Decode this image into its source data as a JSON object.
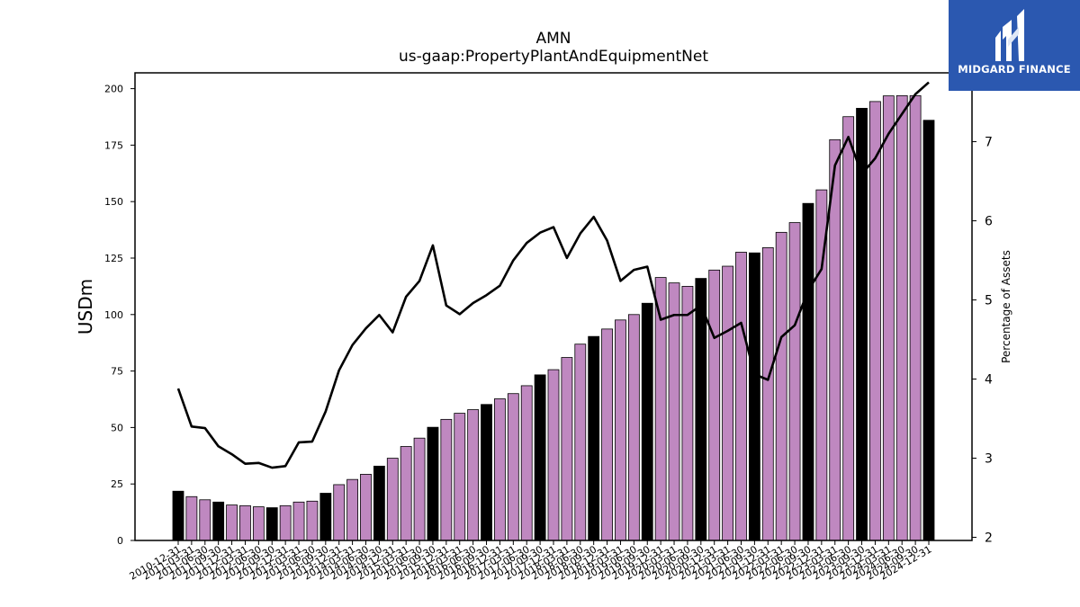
{
  "title": "AMN",
  "subtitle": "us-gaap:PropertyPlantAndEquipmentNet",
  "logo": {
    "text": "MIDGARD FINANCE"
  },
  "colors": {
    "bar_fill": "#bf88c0",
    "bar_highlight": "#000000",
    "bar_stroke": "#000000",
    "line": "#000000",
    "logo_bg": "#2b58b0"
  },
  "chart_data": {
    "type": "bar",
    "ylabel": "USDm",
    "y2label": "Percentage of Assets",
    "ylim": [
      0,
      207
    ],
    "y2lim": [
      1.96,
      7.87
    ],
    "yticks": [
      "0",
      "25",
      "50",
      "75",
      "100",
      "125",
      "150",
      "175",
      "200"
    ],
    "y2ticks": [
      "2",
      "3",
      "4",
      "5",
      "6",
      "7"
    ],
    "categories": [
      "2010-12-31",
      "2011-03-31",
      "2011-06-30",
      "2011-09-30",
      "2011-12-31",
      "2012-03-31",
      "2012-06-30",
      "2012-09-30",
      "2012-12-31",
      "2013-03-31",
      "2013-06-30",
      "2013-09-30",
      "2013-12-31",
      "2014-03-31",
      "2014-06-30",
      "2014-09-30",
      "2014-12-31",
      "2015-03-31",
      "2015-06-30",
      "2015-09-30",
      "2015-12-31",
      "2016-03-31",
      "2016-06-30",
      "2016-09-30",
      "2016-12-31",
      "2017-03-31",
      "2017-06-30",
      "2017-09-30",
      "2017-12-31",
      "2018-03-31",
      "2018-06-30",
      "2018-09-30",
      "2018-12-31",
      "2019-03-31",
      "2019-06-30",
      "2019-09-30",
      "2019-12-31",
      "2020-03-31",
      "2020-06-30",
      "2020-09-30",
      "2020-12-31",
      "2021-03-31",
      "2021-06-30",
      "2021-09-30",
      "2021-12-31",
      "2022-03-31",
      "2022-06-30",
      "2022-09-30",
      "2022-12-31",
      "2023-03-31",
      "2023-06-30",
      "2023-09-30",
      "2023-12-31",
      "2024-03-31",
      "2024-06-30",
      "2024-09-30",
      "2024-12-31"
    ],
    "xtick_labels": [
      "2010-12-31",
      "2011-03-31",
      "2011-06-30",
      "2011-09-30",
      "2011-12-31",
      "2012-03-31",
      "2012-06-30",
      "2012-09-30",
      "2012-12-31",
      "2013-03-31",
      "2013-06-30",
      "2013-09-30",
      "2013-12-31",
      "2014-03-31",
      "2014-06-30",
      "2014-09-30",
      "2014-12-31",
      "2015-03-31",
      "2015-06-30",
      "2015-09-30",
      "2015-12-31",
      "2016-03-31",
      "2016-06-30",
      "2016-09-30",
      "2016-12-31",
      "2017-03-31",
      "2017-06-30",
      "2017-09-30",
      "2017-12-31",
      "2018-03-31",
      "2018-06-30",
      "2018-09-30",
      "2018-12-31",
      "2019-03-31",
      "2019-06-30",
      "2019-09-30",
      "2019-12-31",
      "2020-03-31",
      "2020-06-30",
      "2020-09-30",
      "2020-12-31",
      "2021-03-31",
      "2021-06-30",
      "2021-09-30",
      "2021-12-31",
      "2022-03-31",
      "2022-06-30",
      "2022-09-30",
      "2022-12-31",
      "2023-03-31",
      "2023-06-30",
      "2023-09-30",
      "2023-12-31",
      "2024-03-31",
      "2024-06-30",
      "2024-09-30",
      "2024-12-31"
    ],
    "series": [
      {
        "type": "bar",
        "values": [
          21.8,
          19.4,
          18.0,
          17.0,
          15.7,
          15.4,
          14.9,
          14.5,
          15.4,
          17.0,
          17.4,
          20.9,
          24.7,
          27.0,
          29.3,
          32.9,
          36.4,
          41.6,
          45.3,
          50.1,
          53.6,
          56.3,
          57.9,
          60.2,
          62.7,
          65.0,
          68.5,
          73.3,
          75.6,
          81.0,
          86.9,
          90.3,
          93.6,
          97.6,
          100.0,
          105.0,
          116.4,
          114.0,
          112.5,
          116.0,
          119.7,
          121.4,
          127.6,
          127.3,
          129.6,
          136.4,
          140.7,
          149.2,
          155.2,
          177.4,
          187.6,
          191.3,
          194.3,
          196.8,
          196.9,
          196.9,
          186.0
        ],
        "highlight": [
          true,
          false,
          false,
          true,
          false,
          false,
          false,
          true,
          false,
          false,
          false,
          true,
          false,
          false,
          false,
          true,
          false,
          false,
          false,
          true,
          false,
          false,
          false,
          true,
          false,
          false,
          false,
          true,
          false,
          false,
          false,
          true,
          false,
          false,
          false,
          true,
          false,
          false,
          false,
          true,
          false,
          false,
          false,
          true,
          false,
          false,
          false,
          true,
          false,
          false,
          false,
          true,
          false,
          false,
          false,
          false,
          true
        ]
      },
      {
        "type": "line",
        "axis": "right",
        "values": [
          3.88,
          3.4,
          3.38,
          3.15,
          3.05,
          2.93,
          2.94,
          2.88,
          2.9,
          3.2,
          3.21,
          3.59,
          4.11,
          4.43,
          4.64,
          4.81,
          4.59,
          5.04,
          5.24,
          5.69,
          4.93,
          4.82,
          4.96,
          5.06,
          5.18,
          5.5,
          5.72,
          5.85,
          5.92,
          5.53,
          5.84,
          6.05,
          5.75,
          5.24,
          5.38,
          5.42,
          4.75,
          4.81,
          4.81,
          4.93,
          4.52,
          4.61,
          4.71,
          4.06,
          3.99,
          4.53,
          4.68,
          5.12,
          5.39,
          6.7,
          7.06,
          6.59,
          6.79,
          7.1,
          7.35,
          7.6,
          7.75
        ]
      }
    ],
    "grid": false
  }
}
